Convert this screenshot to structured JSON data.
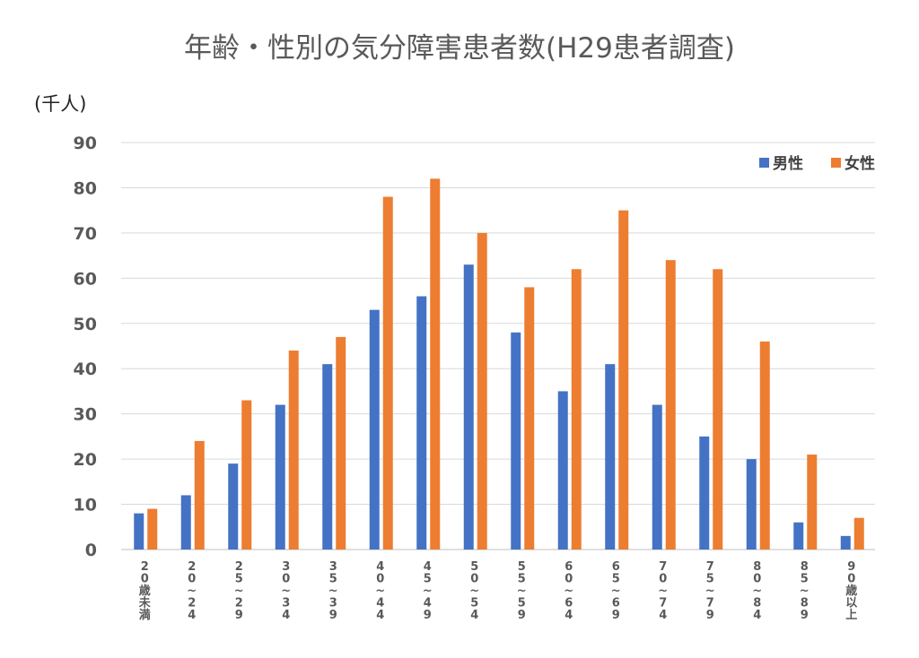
{
  "chart_data": {
    "type": "bar",
    "title": "年齢・性別の気分障害患者数(H29患者調査)",
    "ylabel": "(千人)",
    "xlabel": "",
    "ylim": [
      0,
      90
    ],
    "yticks": [
      0,
      10,
      20,
      30,
      40,
      50,
      60,
      70,
      80,
      90
    ],
    "grid": true,
    "legend_position": "top-right",
    "categories": [
      "20歳未満",
      "20～24",
      "25～29",
      "30～34",
      "35～39",
      "40～44",
      "45～49",
      "50～54",
      "55～59",
      "60～64",
      "65～69",
      "70～74",
      "75～79",
      "80～84",
      "85～89",
      "90歳以上"
    ],
    "series": [
      {
        "name": "男性",
        "color": "#4472C4",
        "values": [
          8,
          12,
          19,
          32,
          41,
          53,
          56,
          63,
          48,
          35,
          41,
          32,
          25,
          20,
          6,
          3
        ]
      },
      {
        "name": "女性",
        "color": "#ED7D31",
        "values": [
          9,
          24,
          33,
          44,
          47,
          78,
          82,
          70,
          58,
          62,
          75,
          64,
          62,
          46,
          21,
          7
        ]
      }
    ]
  }
}
